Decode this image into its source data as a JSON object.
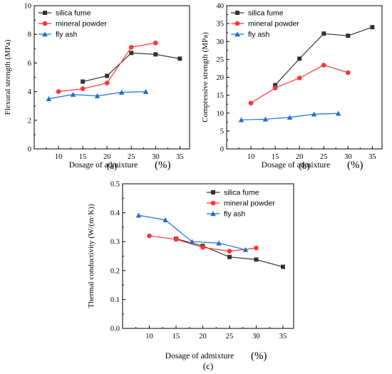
{
  "colors": {
    "silica_fume": "#333333",
    "mineral_powder": "#ff3333",
    "fly_ash": "#1f70d0"
  },
  "chart_data": [
    {
      "id": "a",
      "type": "line",
      "panel_label": "(a)",
      "xlabel": "Dosage of admixture",
      "xlabel_unit": "(%)",
      "ylabel": "Flexural strength (MPa)",
      "xlim": [
        5,
        37
      ],
      "ylim": [
        0,
        10
      ],
      "xticks": [
        10,
        15,
        20,
        25,
        30,
        35
      ],
      "yticks": [
        0,
        2,
        4,
        6,
        8,
        10
      ],
      "grid": false,
      "legend": "top-left",
      "series": [
        {
          "name": "silica fume",
          "marker": "square",
          "color": "#333333",
          "x": [
            15,
            20,
            25,
            30,
            35
          ],
          "y": [
            4.7,
            5.1,
            6.7,
            6.6,
            6.3
          ]
        },
        {
          "name": "mineral powder",
          "marker": "circle",
          "color": "#ff3333",
          "x": [
            10,
            15,
            20,
            25,
            30
          ],
          "y": [
            4.0,
            4.2,
            4.6,
            7.1,
            7.4
          ]
        },
        {
          "name": "fly ash",
          "marker": "triangle",
          "color": "#1f70d0",
          "x": [
            8,
            13,
            18,
            23,
            28
          ],
          "y": [
            3.5,
            3.8,
            3.7,
            3.95,
            4.0
          ]
        }
      ]
    },
    {
      "id": "b",
      "type": "line",
      "panel_label": "(b)",
      "xlabel": "Dosage of admixture",
      "xlabel_unit": "(%)",
      "ylabel": "Compressive strength (MPa)",
      "xlim": [
        5,
        37
      ],
      "ylim": [
        0,
        40
      ],
      "xticks": [
        10,
        15,
        20,
        25,
        30,
        35
      ],
      "yticks": [
        0,
        5,
        10,
        15,
        20,
        25,
        30,
        35,
        40
      ],
      "grid": false,
      "legend": "top-left",
      "series": [
        {
          "name": "silica fume",
          "marker": "square",
          "color": "#333333",
          "x": [
            15,
            20,
            25,
            30,
            35
          ],
          "y": [
            17.8,
            25.2,
            32.2,
            31.6,
            34.0
          ]
        },
        {
          "name": "mineral powder",
          "marker": "circle",
          "color": "#ff3333",
          "x": [
            10,
            15,
            20,
            25,
            30
          ],
          "y": [
            12.8,
            17.0,
            19.8,
            23.4,
            21.3
          ]
        },
        {
          "name": "fly ash",
          "marker": "triangle",
          "color": "#1f70d0",
          "x": [
            8,
            13,
            18,
            23,
            28
          ],
          "y": [
            8.1,
            8.3,
            8.8,
            9.7,
            9.9
          ]
        }
      ]
    },
    {
      "id": "c",
      "type": "line",
      "panel_label": "(c)",
      "xlabel": "Dosage of admixture",
      "xlabel_unit": "(%)",
      "ylabel": "Thermal conductivity (W/(m·K))",
      "xlim": [
        5,
        37
      ],
      "ylim": [
        0.0,
        0.5
      ],
      "xticks": [
        10,
        15,
        20,
        25,
        30,
        35
      ],
      "yticks": [
        0.0,
        0.1,
        0.2,
        0.3,
        0.4,
        0.5
      ],
      "grid": false,
      "legend": "top-right",
      "series": [
        {
          "name": "silica fume",
          "marker": "square",
          "color": "#333333",
          "x": [
            15,
            20,
            25,
            30,
            35
          ],
          "y": [
            0.31,
            0.285,
            0.247,
            0.238,
            0.213
          ]
        },
        {
          "name": "mineral powder",
          "marker": "circle",
          "color": "#ff3333",
          "x": [
            10,
            15,
            20,
            25,
            30
          ],
          "y": [
            0.32,
            0.308,
            0.28,
            0.267,
            0.278
          ]
        },
        {
          "name": "fly ash",
          "marker": "triangle",
          "color": "#1f70d0",
          "x": [
            8,
            13,
            18,
            23,
            28
          ],
          "y": [
            0.391,
            0.375,
            0.3,
            0.295,
            0.272
          ]
        }
      ]
    }
  ]
}
